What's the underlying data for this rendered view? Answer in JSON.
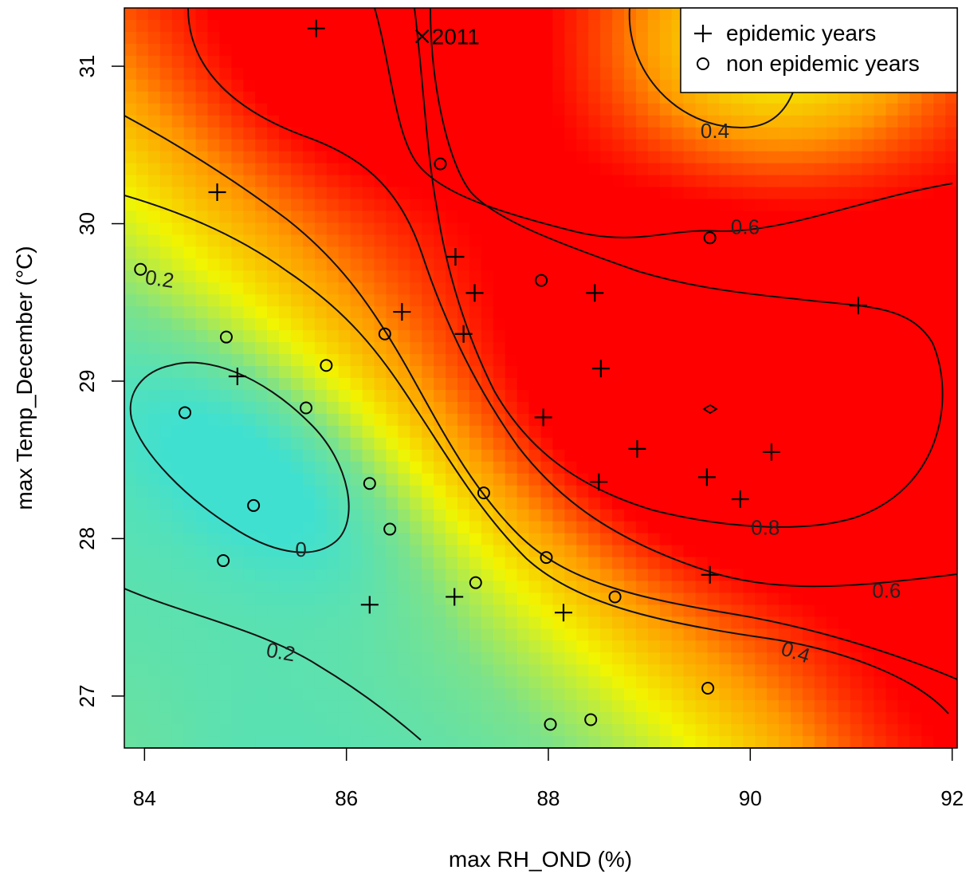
{
  "chart_data": {
    "type": "heatmap",
    "xlabel": "max RH_OND (%)",
    "ylabel": "max Temp_December (°C)",
    "xlim": [
      83.8,
      92.05
    ],
    "ylim": [
      26.67,
      31.37
    ],
    "x_ticks": [
      "84",
      "86",
      "88",
      "90",
      "92"
    ],
    "y_ticks": [
      "27",
      "28",
      "29",
      "30",
      "31"
    ],
    "grid": false,
    "legend_position": "top-right",
    "legend": [
      {
        "symbol": "plus",
        "label": "epidemic years"
      },
      {
        "symbol": "circle",
        "label": "non epidemic years"
      }
    ],
    "annotation": {
      "symbol": "cross",
      "label": "2011",
      "x": 86.75,
      "y": 31.19
    },
    "colormap": [
      "#40e0d0",
      "#7ce28a",
      "#f2f500",
      "#ff9a00",
      "#ff0000"
    ],
    "contour_levels": [
      {
        "label": "0",
        "x": 85.55,
        "y": 27.93,
        "angle": 0
      },
      {
        "label": "0.2",
        "x": 84.15,
        "y": 29.65,
        "angle": 8
      },
      {
        "label": "0.2",
        "x": 85.35,
        "y": 27.28,
        "angle": 10
      },
      {
        "label": "0.4",
        "x": 89.65,
        "y": 30.59,
        "angle": 0
      },
      {
        "label": "0.4",
        "x": 90.45,
        "y": 27.28,
        "angle": 18
      },
      {
        "label": "0.6",
        "x": 89.95,
        "y": 29.98,
        "angle": 0
      },
      {
        "label": "0.6",
        "x": 91.35,
        "y": 27.67,
        "angle": 0
      },
      {
        "label": "0.8",
        "x": 90.15,
        "y": 28.07,
        "angle": 0
      }
    ],
    "series": [
      {
        "name": "epidemic years",
        "marker": "plus",
        "points": [
          [
            85.7,
            31.24
          ],
          [
            84.72,
            30.2
          ],
          [
            87.08,
            29.79
          ],
          [
            87.27,
            29.56
          ],
          [
            86.55,
            29.44
          ],
          [
            87.16,
            29.3
          ],
          [
            88.46,
            29.56
          ],
          [
            91.07,
            29.48
          ],
          [
            84.92,
            29.03
          ],
          [
            88.52,
            29.08
          ],
          [
            87.95,
            28.77
          ],
          [
            88.88,
            28.57
          ],
          [
            90.21,
            28.55
          ],
          [
            89.57,
            28.39
          ],
          [
            88.5,
            28.36
          ],
          [
            89.9,
            28.25
          ],
          [
            89.6,
            27.77
          ],
          [
            86.23,
            27.58
          ],
          [
            87.07,
            27.63
          ],
          [
            88.15,
            27.53
          ]
        ]
      },
      {
        "name": "non epidemic years",
        "marker": "circle",
        "points": [
          [
            86.93,
            30.38
          ],
          [
            89.6,
            29.91
          ],
          [
            83.96,
            29.71
          ],
          [
            87.93,
            29.64
          ],
          [
            84.81,
            29.28
          ],
          [
            86.38,
            29.3
          ],
          [
            85.8,
            29.1
          ],
          [
            84.4,
            28.8
          ],
          [
            85.6,
            28.83
          ],
          [
            86.23,
            28.35
          ],
          [
            87.36,
            28.29
          ],
          [
            85.08,
            28.21
          ],
          [
            86.43,
            28.06
          ],
          [
            84.78,
            27.86
          ],
          [
            87.98,
            27.88
          ],
          [
            87.28,
            27.72
          ],
          [
            88.66,
            27.63
          ],
          [
            89.58,
            27.05
          ],
          [
            88.02,
            26.82
          ],
          [
            88.42,
            26.85
          ]
        ]
      }
    ]
  }
}
